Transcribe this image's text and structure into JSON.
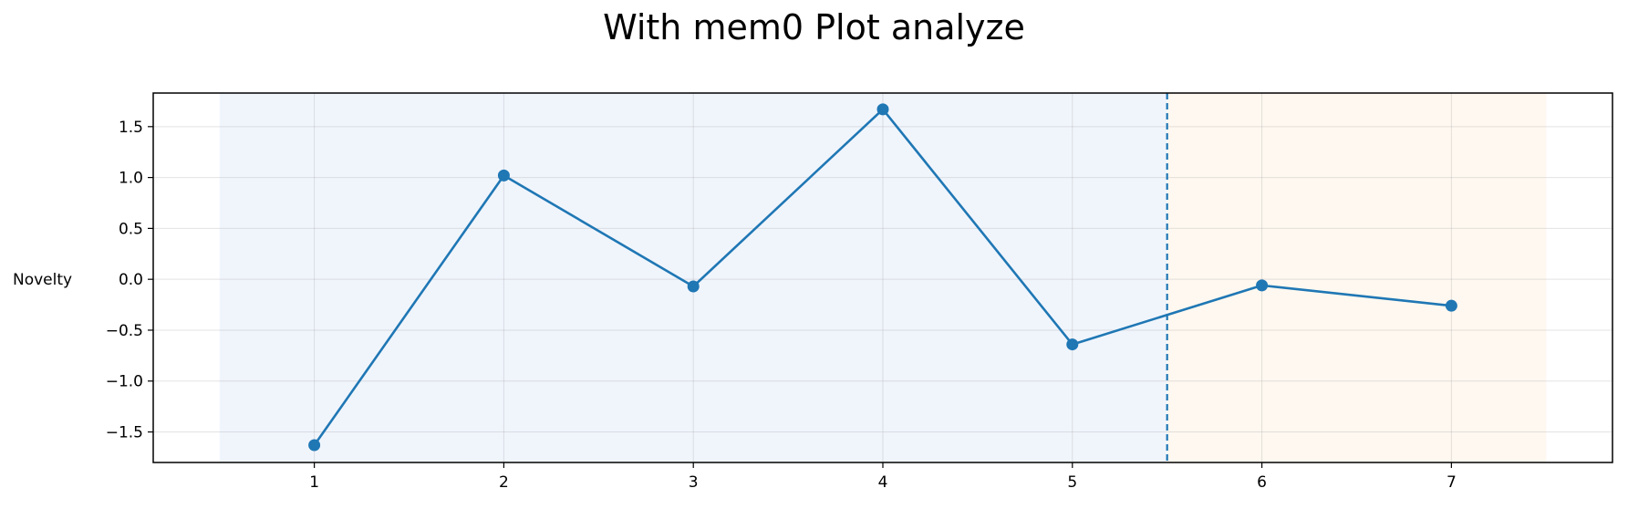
{
  "chart_data": {
    "type": "line",
    "title": "With mem0 Plot analyze",
    "xlabel": "",
    "ylabel": "Novelty",
    "x": [
      1,
      2,
      3,
      4,
      5,
      6,
      7
    ],
    "series": [
      {
        "values": [
          -1.63,
          1.02,
          -0.07,
          1.67,
          -0.64,
          -0.06,
          -0.26
        ],
        "color": "#1f77b4",
        "marker": "circle"
      }
    ],
    "xlim": [
      0.15,
      7.85
    ],
    "ylim": [
      -1.8,
      1.83
    ],
    "xticks": [
      1,
      2,
      3,
      4,
      5,
      6,
      7
    ],
    "yticks": [
      1.5,
      1.0,
      0.5,
      0.0,
      -0.5,
      -1.0,
      -1.5
    ],
    "ytick_labels": [
      "1.5",
      "1.0",
      "0.5",
      "0.0",
      "−0.5",
      "−1.0",
      "−1.5"
    ],
    "grid": true,
    "shaded_regions": [
      {
        "x_start": 0.5,
        "x_end": 5.5,
        "color": "#eaf1fb"
      },
      {
        "x_start": 5.5,
        "x_end": 7.5,
        "color": "#fef5ea"
      }
    ],
    "vertical_line": {
      "x": 5.5,
      "style": "dashed",
      "color": "#1f77b4"
    }
  }
}
